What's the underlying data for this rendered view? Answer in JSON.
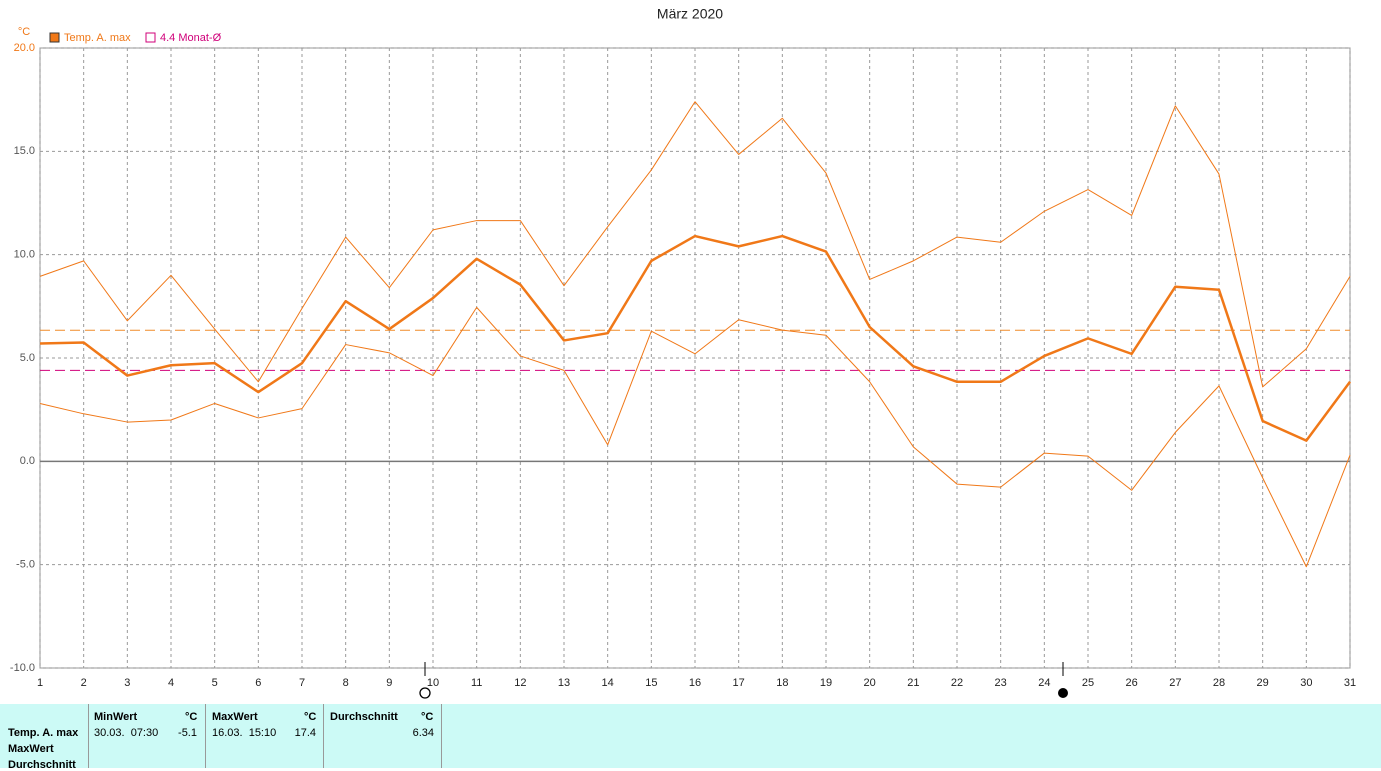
{
  "chart_data": {
    "type": "line",
    "title": "März 2020",
    "y_unit": "°C",
    "x": [
      1,
      2,
      3,
      4,
      5,
      6,
      7,
      8,
      9,
      10,
      11,
      12,
      13,
      14,
      15,
      16,
      17,
      18,
      19,
      20,
      21,
      22,
      23,
      24,
      25,
      26,
      27,
      28,
      29,
      30,
      31
    ],
    "xlim": [
      1,
      31
    ],
    "ylim": [
      -10,
      20
    ],
    "yticks": [
      {
        "value": -10,
        "label": "-10.0"
      },
      {
        "value": -5,
        "label": "-5.0"
      },
      {
        "value": 0,
        "label": "0.0"
      },
      {
        "value": 5,
        "label": "5.0"
      },
      {
        "value": 10,
        "label": "10.0"
      },
      {
        "value": 15,
        "label": "15.0"
      },
      {
        "value": 20,
        "label": "20.0"
      }
    ],
    "grid": true,
    "series": [
      {
        "name": "Temp. A. max",
        "color": "#f07818",
        "values": [
          5.7,
          5.75,
          4.15,
          4.65,
          4.75,
          3.35,
          4.75,
          7.75,
          6.4,
          7.9,
          9.8,
          8.55,
          5.85,
          6.2,
          9.7,
          10.9,
          10.4,
          10.9,
          10.15,
          6.5,
          4.6,
          3.85,
          3.85,
          5.1,
          5.95,
          5.2,
          8.45,
          8.3,
          1.95,
          1.0,
          3.85
        ]
      },
      {
        "color": "#f07818",
        "values": [
          8.95,
          9.7,
          6.8,
          9.0,
          6.4,
          3.85,
          7.4,
          10.85,
          8.4,
          11.2,
          11.65,
          11.65,
          8.5,
          11.35,
          14.1,
          17.4,
          14.85,
          16.6,
          13.95,
          8.8,
          9.7,
          10.85,
          10.6,
          12.1,
          13.15,
          11.9,
          17.2,
          13.9,
          3.6,
          5.45,
          8.95
        ]
      },
      {
        "color": "#f07818",
        "values": [
          2.8,
          2.3,
          1.9,
          2.0,
          2.8,
          2.1,
          2.55,
          5.65,
          5.25,
          4.15,
          7.45,
          5.1,
          4.4,
          0.8,
          6.3,
          5.2,
          6.85,
          6.35,
          6.1,
          3.85,
          0.7,
          -1.1,
          -1.25,
          0.4,
          0.25,
          -1.4,
          1.4,
          3.65,
          -0.8,
          -5.1,
          0.3
        ]
      }
    ],
    "reference_line": {
      "value": 4.4,
      "label": "4.4 Monat-Ø",
      "color": "#d0007a"
    },
    "average_line_color": "#f08c28"
  },
  "stats_table": {
    "headers": [
      "MinWert",
      "°C",
      "MaxWert",
      "°C",
      "Durchschnitt",
      "°C"
    ],
    "row_labels": [
      "Temp. A. max",
      "MaxWert",
      "Durchschnitt"
    ],
    "rows": [
      [
        "30.03.  07:30",
        -5.1,
        "16.03.  15:10",
        17.4,
        6.34
      ]
    ]
  }
}
